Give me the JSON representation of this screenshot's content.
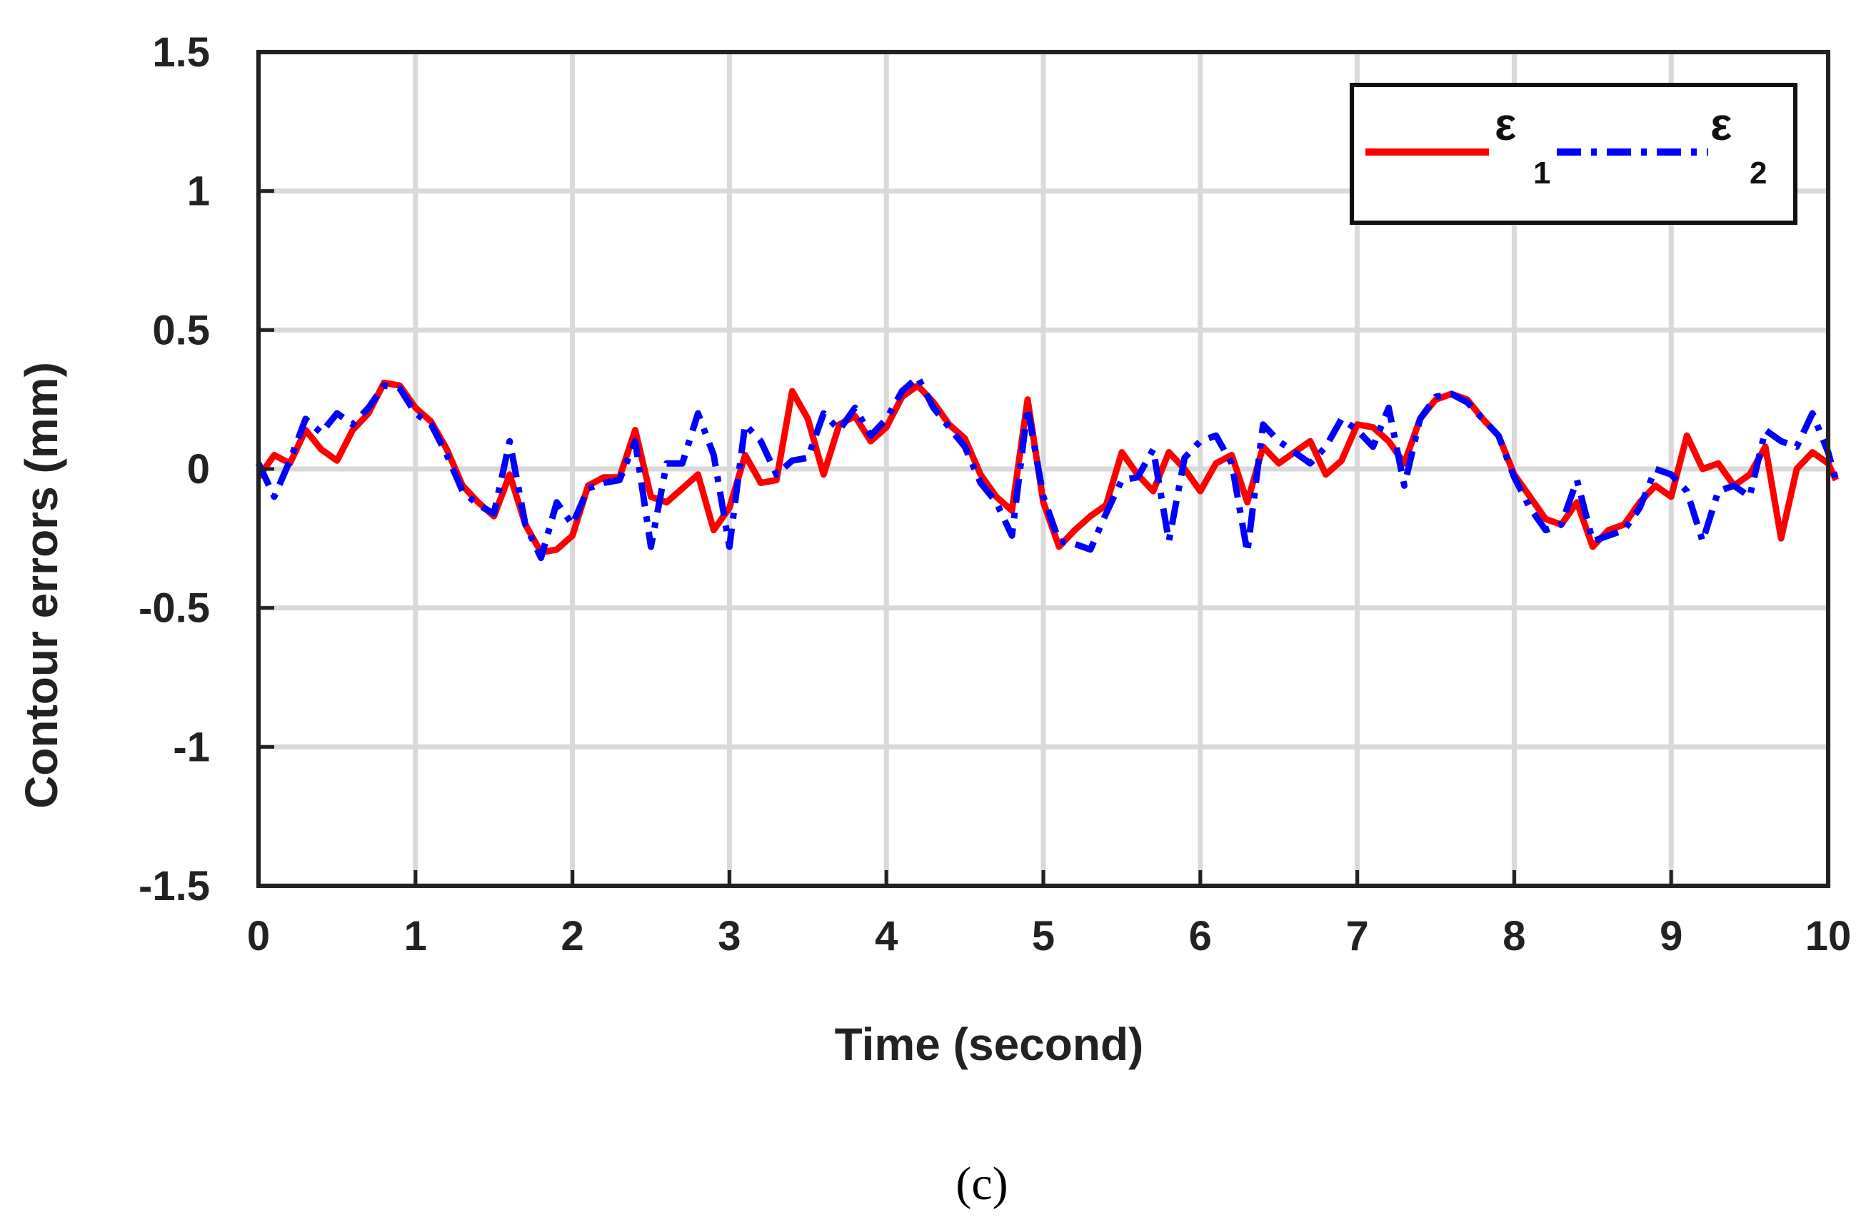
{
  "chart_data": {
    "type": "line",
    "xlabel": "Time (second)",
    "ylabel": "Contour errors (mm)",
    "xlim": [
      0,
      10
    ],
    "ylim": [
      -1.5,
      1.5
    ],
    "x_ticks": [
      "0",
      "1",
      "2",
      "3",
      "4",
      "5",
      "6",
      "7",
      "8",
      "9",
      "10"
    ],
    "y_ticks": [
      "1.5",
      "1",
      "0.5",
      "0",
      "-0.5",
      "-1",
      "-1.5"
    ],
    "grid": true,
    "legend_position": "top-right",
    "series": [
      {
        "name": "ε",
        "subscript": "1",
        "color": "#ff0000",
        "style": "solid",
        "points": [
          [
            0,
            -0.03
          ],
          [
            0.1,
            0.05
          ],
          [
            0.2,
            0.02
          ],
          [
            0.3,
            0.14
          ],
          [
            0.4,
            0.07
          ],
          [
            0.5,
            0.03
          ],
          [
            0.6,
            0.14
          ],
          [
            0.7,
            0.2
          ],
          [
            0.8,
            0.31
          ],
          [
            0.9,
            0.3
          ],
          [
            1.0,
            0.22
          ],
          [
            1.1,
            0.17
          ],
          [
            1.2,
            0.07
          ],
          [
            1.3,
            -0.06
          ],
          [
            1.4,
            -0.12
          ],
          [
            1.5,
            -0.17
          ],
          [
            1.6,
            -0.02
          ],
          [
            1.7,
            -0.2
          ],
          [
            1.8,
            -0.3
          ],
          [
            1.9,
            -0.29
          ],
          [
            2.0,
            -0.24
          ],
          [
            2.1,
            -0.06
          ],
          [
            2.2,
            -0.03
          ],
          [
            2.3,
            -0.03
          ],
          [
            2.4,
            0.14
          ],
          [
            2.5,
            -0.1
          ],
          [
            2.6,
            -0.12
          ],
          [
            2.7,
            -0.07
          ],
          [
            2.8,
            -0.02
          ],
          [
            2.9,
            -0.22
          ],
          [
            3.0,
            -0.14
          ],
          [
            3.1,
            0.05
          ],
          [
            3.2,
            -0.05
          ],
          [
            3.3,
            -0.04
          ],
          [
            3.4,
            0.28
          ],
          [
            3.5,
            0.18
          ],
          [
            3.6,
            -0.02
          ],
          [
            3.7,
            0.16
          ],
          [
            3.8,
            0.19
          ],
          [
            3.9,
            0.1
          ],
          [
            4.0,
            0.15
          ],
          [
            4.1,
            0.26
          ],
          [
            4.2,
            0.3
          ],
          [
            4.3,
            0.24
          ],
          [
            4.4,
            0.16
          ],
          [
            4.5,
            0.11
          ],
          [
            4.6,
            -0.02
          ],
          [
            4.7,
            -0.1
          ],
          [
            4.8,
            -0.15
          ],
          [
            4.9,
            0.25
          ],
          [
            5.0,
            -0.12
          ],
          [
            5.1,
            -0.28
          ],
          [
            5.2,
            -0.22
          ],
          [
            5.3,
            -0.17
          ],
          [
            5.4,
            -0.13
          ],
          [
            5.5,
            0.06
          ],
          [
            5.6,
            -0.02
          ],
          [
            5.7,
            -0.08
          ],
          [
            5.8,
            0.06
          ],
          [
            5.9,
            0.0
          ],
          [
            6.0,
            -0.08
          ],
          [
            6.1,
            0.02
          ],
          [
            6.2,
            0.05
          ],
          [
            6.3,
            -0.12
          ],
          [
            6.4,
            0.08
          ],
          [
            6.5,
            0.02
          ],
          [
            6.6,
            0.06
          ],
          [
            6.7,
            0.1
          ],
          [
            6.8,
            -0.02
          ],
          [
            6.9,
            0.03
          ],
          [
            7.0,
            0.16
          ],
          [
            7.1,
            0.15
          ],
          [
            7.2,
            0.1
          ],
          [
            7.3,
            0.02
          ],
          [
            7.4,
            0.18
          ],
          [
            7.5,
            0.25
          ],
          [
            7.6,
            0.27
          ],
          [
            7.7,
            0.25
          ],
          [
            7.8,
            0.18
          ],
          [
            7.9,
            0.12
          ],
          [
            8.0,
            -0.02
          ],
          [
            8.1,
            -0.1
          ],
          [
            8.2,
            -0.18
          ],
          [
            8.3,
            -0.2
          ],
          [
            8.4,
            -0.12
          ],
          [
            8.5,
            -0.28
          ],
          [
            8.6,
            -0.22
          ],
          [
            8.7,
            -0.2
          ],
          [
            8.8,
            -0.12
          ],
          [
            8.9,
            -0.06
          ],
          [
            9.0,
            -0.1
          ],
          [
            9.1,
            0.12
          ],
          [
            9.2,
            0.0
          ],
          [
            9.3,
            0.02
          ],
          [
            9.4,
            -0.06
          ],
          [
            9.5,
            -0.02
          ],
          [
            9.6,
            0.08
          ],
          [
            9.7,
            -0.25
          ],
          [
            9.8,
            0.0
          ],
          [
            9.9,
            0.06
          ],
          [
            10.0,
            0.02
          ],
          [
            10.05,
            -0.04
          ]
        ]
      },
      {
        "name": "ε",
        "subscript": "2",
        "color": "#0000ff",
        "style": "dashdot",
        "points": [
          [
            0,
            0.02
          ],
          [
            0.1,
            -0.1
          ],
          [
            0.2,
            0.03
          ],
          [
            0.3,
            0.18
          ],
          [
            0.4,
            0.13
          ],
          [
            0.5,
            0.2
          ],
          [
            0.6,
            0.16
          ],
          [
            0.7,
            0.22
          ],
          [
            0.8,
            0.3
          ],
          [
            0.9,
            0.29
          ],
          [
            1.0,
            0.2
          ],
          [
            1.1,
            0.16
          ],
          [
            1.2,
            0.05
          ],
          [
            1.3,
            -0.08
          ],
          [
            1.4,
            -0.13
          ],
          [
            1.5,
            -0.16
          ],
          [
            1.6,
            0.1
          ],
          [
            1.7,
            -0.2
          ],
          [
            1.8,
            -0.32
          ],
          [
            1.9,
            -0.12
          ],
          [
            2.0,
            -0.2
          ],
          [
            2.1,
            -0.07
          ],
          [
            2.2,
            -0.05
          ],
          [
            2.3,
            -0.04
          ],
          [
            2.4,
            0.1
          ],
          [
            2.5,
            -0.28
          ],
          [
            2.6,
            0.02
          ],
          [
            2.7,
            0.02
          ],
          [
            2.8,
            0.2
          ],
          [
            2.9,
            0.05
          ],
          [
            3.0,
            -0.28
          ],
          [
            3.1,
            0.16
          ],
          [
            3.2,
            0.1
          ],
          [
            3.3,
            -0.02
          ],
          [
            3.4,
            0.03
          ],
          [
            3.5,
            0.04
          ],
          [
            3.6,
            0.2
          ],
          [
            3.7,
            0.14
          ],
          [
            3.8,
            0.22
          ],
          [
            3.9,
            0.12
          ],
          [
            4.0,
            0.18
          ],
          [
            4.1,
            0.28
          ],
          [
            4.2,
            0.33
          ],
          [
            4.3,
            0.22
          ],
          [
            4.4,
            0.15
          ],
          [
            4.5,
            0.08
          ],
          [
            4.6,
            -0.05
          ],
          [
            4.7,
            -0.12
          ],
          [
            4.8,
            -0.24
          ],
          [
            4.9,
            0.22
          ],
          [
            5.0,
            -0.1
          ],
          [
            5.1,
            -0.26
          ],
          [
            5.2,
            -0.27
          ],
          [
            5.3,
            -0.29
          ],
          [
            5.4,
            -0.16
          ],
          [
            5.5,
            -0.04
          ],
          [
            5.6,
            -0.03
          ],
          [
            5.7,
            0.07
          ],
          [
            5.8,
            -0.26
          ],
          [
            5.9,
            0.04
          ],
          [
            6.0,
            0.1
          ],
          [
            6.1,
            0.12
          ],
          [
            6.2,
            0.02
          ],
          [
            6.3,
            -0.3
          ],
          [
            6.4,
            0.16
          ],
          [
            6.5,
            0.1
          ],
          [
            6.6,
            0.06
          ],
          [
            6.7,
            0.02
          ],
          [
            6.8,
            0.08
          ],
          [
            6.9,
            0.18
          ],
          [
            7.0,
            0.14
          ],
          [
            7.1,
            0.08
          ],
          [
            7.2,
            0.22
          ],
          [
            7.3,
            -0.06
          ],
          [
            7.4,
            0.18
          ],
          [
            7.5,
            0.26
          ],
          [
            7.6,
            0.27
          ],
          [
            7.7,
            0.24
          ],
          [
            7.8,
            0.18
          ],
          [
            7.9,
            0.12
          ],
          [
            8.0,
            -0.03
          ],
          [
            8.1,
            -0.14
          ],
          [
            8.2,
            -0.22
          ],
          [
            8.3,
            -0.2
          ],
          [
            8.4,
            -0.04
          ],
          [
            8.5,
            -0.26
          ],
          [
            8.6,
            -0.24
          ],
          [
            8.7,
            -0.22
          ],
          [
            8.8,
            -0.14
          ],
          [
            8.9,
            0.0
          ],
          [
            9.0,
            -0.02
          ],
          [
            9.1,
            -0.08
          ],
          [
            9.2,
            -0.26
          ],
          [
            9.3,
            -0.08
          ],
          [
            9.4,
            -0.06
          ],
          [
            9.5,
            -0.1
          ],
          [
            9.6,
            0.14
          ],
          [
            9.7,
            0.1
          ],
          [
            9.8,
            0.08
          ],
          [
            9.9,
            0.2
          ],
          [
            10.0,
            0.06
          ],
          [
            10.05,
            -0.04
          ]
        ]
      }
    ]
  },
  "caption": "(c)"
}
